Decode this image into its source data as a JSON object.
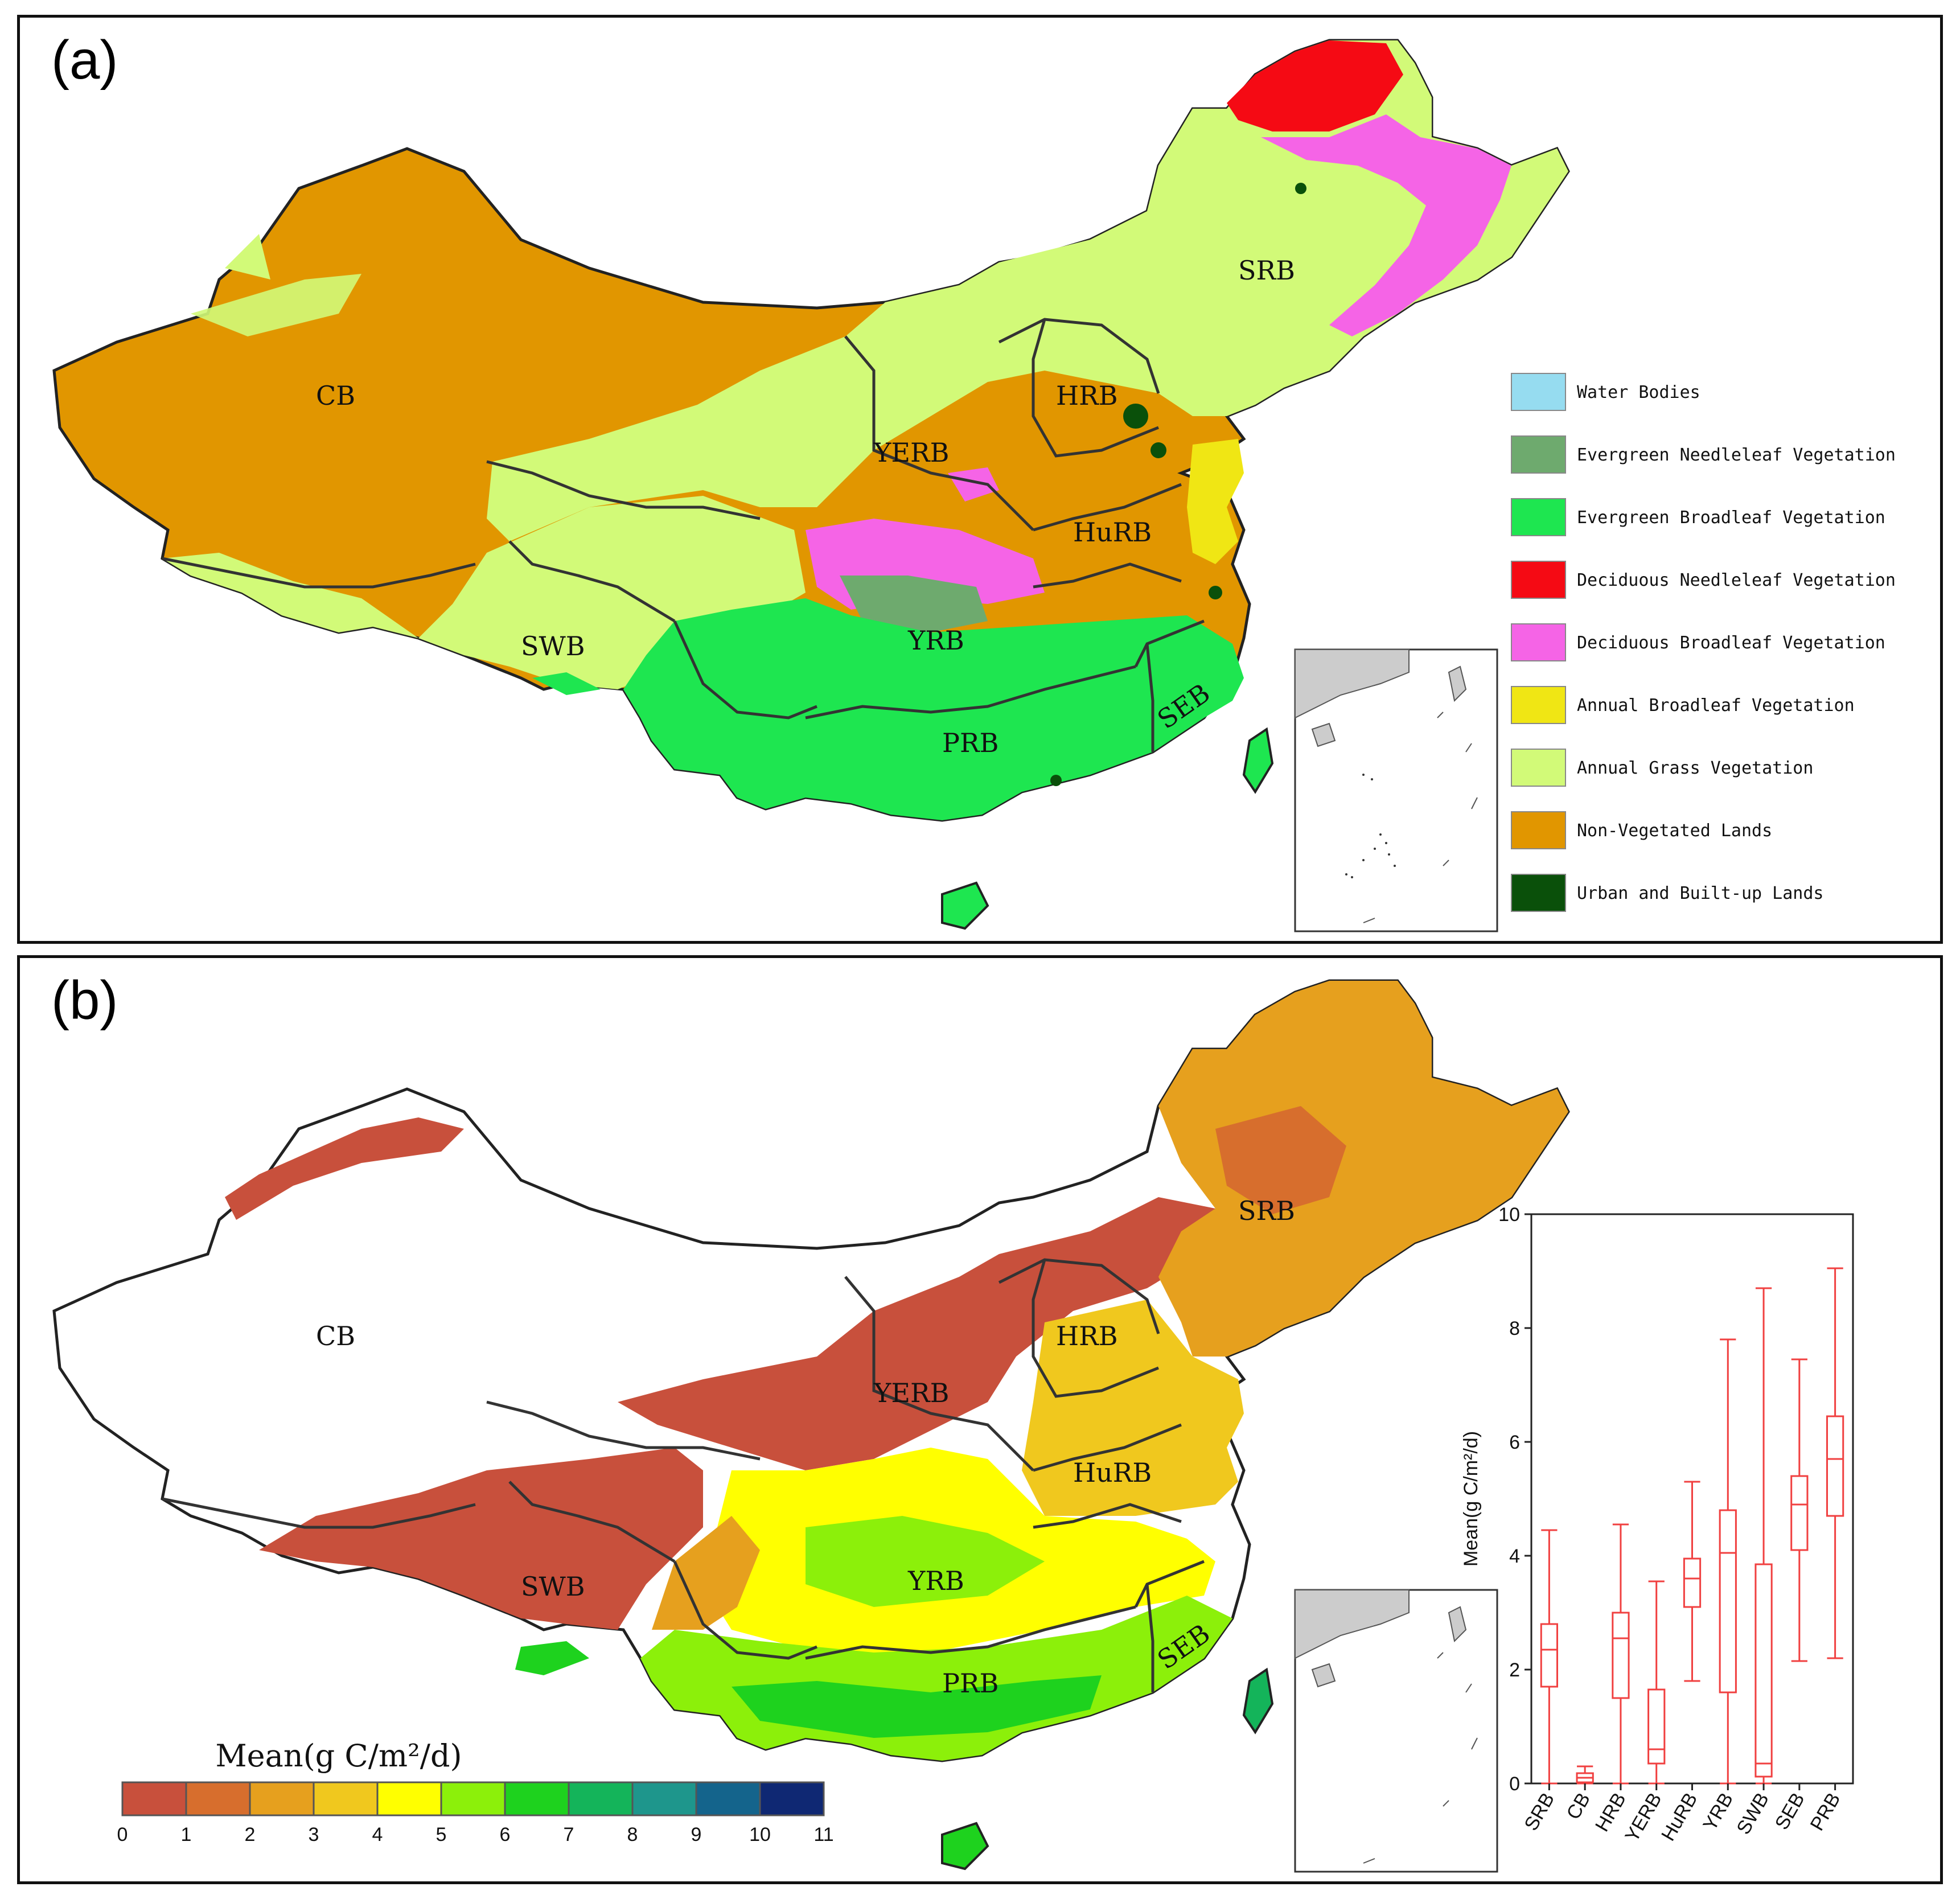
{
  "panel_a": {
    "label": "(a)",
    "basins": [
      "CB",
      "YERB",
      "HRB",
      "SRB",
      "HuRB",
      "YRB",
      "SWB",
      "SEB",
      "PRB"
    ],
    "legend": [
      {
        "label": "Water Bodies",
        "color": "#96dcf0"
      },
      {
        "label": "Evergreen Needleleaf Vegetation",
        "color": "#6eaa6e"
      },
      {
        "label": "Evergreen Broadleaf Vegetation",
        "color": "#1ee650"
      },
      {
        "label": "Deciduous Needleleaf Vegetation",
        "color": "#f50a14"
      },
      {
        "label": "Deciduous Broadleaf Vegetation",
        "color": "#f564e6"
      },
      {
        "label": "Annual Broadleaf Vegetation",
        "color": "#f0e614"
      },
      {
        "label": "Annual Grass Vegetation",
        "color": "#d2fa78"
      },
      {
        "label": "Non-Vegetated Lands",
        "color": "#e19600"
      },
      {
        "label": "Urban and Built-up Lands",
        "color": "#0a500a"
      }
    ]
  },
  "panel_b": {
    "label": "(b)",
    "basins": [
      "CB",
      "YERB",
      "HRB",
      "SRB",
      "HuRB",
      "YRB",
      "SWB",
      "SEB",
      "PRB"
    ],
    "colorbar": {
      "title": "Mean(g C/m²/d)",
      "ticks": [
        "0",
        "1",
        "2",
        "3",
        "4",
        "5",
        "6",
        "7",
        "8",
        "9",
        "10",
        "11"
      ],
      "colors": [
        "#c8503c",
        "#d76e2d",
        "#e6a01e",
        "#f0c81e",
        "#ffff00",
        "#8cf00a",
        "#1ed21e",
        "#14b45a",
        "#1e968c",
        "#14648c",
        "#0f2873"
      ]
    }
  },
  "chart_data": {
    "type": "box",
    "categories": [
      "SRB",
      "CB",
      "HRB",
      "YERB",
      "HuRB",
      "YRB",
      "SWB",
      "SEB",
      "PRB"
    ],
    "ylabel": "Mean(g C/m²/d)",
    "ylim": [
      0,
      10
    ],
    "yticks": [
      "0",
      "2",
      "4",
      "6",
      "8",
      "10"
    ],
    "color": "#f04040",
    "boxes": [
      {
        "name": "SRB",
        "min": 0,
        "q1": 1.7,
        "median": 2.35,
        "q3": 2.8,
        "max": 4.45
      },
      {
        "name": "CB",
        "min": 0,
        "q1": 0.02,
        "median": 0.1,
        "q3": 0.18,
        "max": 0.3
      },
      {
        "name": "HRB",
        "min": 0,
        "q1": 1.5,
        "median": 2.55,
        "q3": 3.0,
        "max": 4.55
      },
      {
        "name": "YERB",
        "min": 0,
        "q1": 0.35,
        "median": 0.6,
        "q3": 1.65,
        "max": 3.55
      },
      {
        "name": "HuRB",
        "min": 1.8,
        "q1": 3.1,
        "median": 3.6,
        "q3": 3.95,
        "max": 5.3
      },
      {
        "name": "YRB",
        "min": 0,
        "q1": 1.6,
        "median": 4.05,
        "q3": 4.8,
        "max": 7.8
      },
      {
        "name": "SWB",
        "min": 0,
        "q1": 0.12,
        "median": 0.35,
        "q3": 3.85,
        "max": 8.7
      },
      {
        "name": "SEB",
        "min": 2.15,
        "q1": 4.1,
        "median": 4.9,
        "q3": 5.4,
        "max": 7.45
      },
      {
        "name": "PRB",
        "min": 2.2,
        "q1": 4.7,
        "median": 5.7,
        "q3": 6.45,
        "max": 9.05
      }
    ]
  }
}
